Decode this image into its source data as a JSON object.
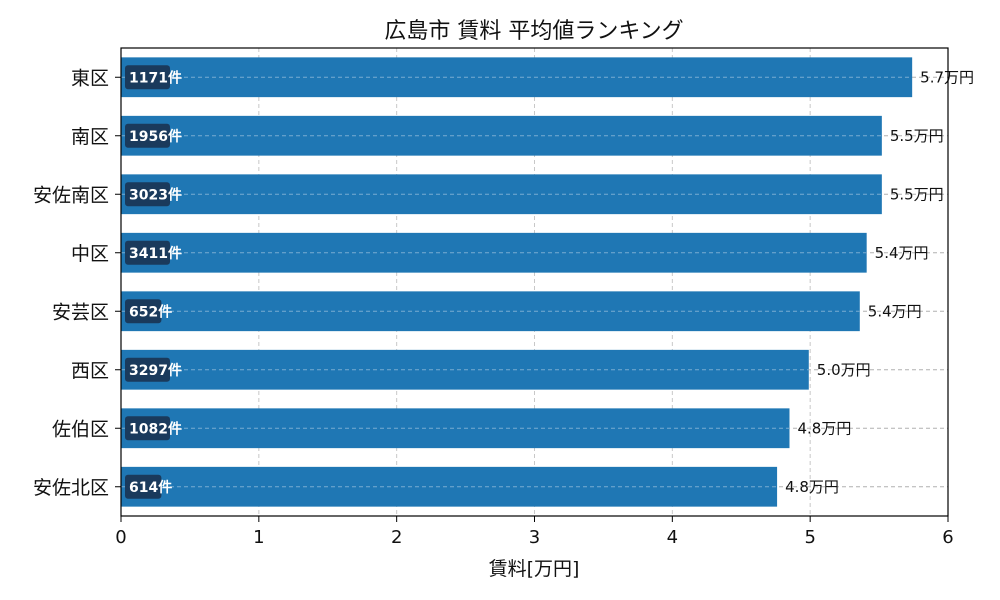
{
  "chart_data": {
    "type": "bar",
    "orientation": "horizontal",
    "title": "広島市 賃料 平均値ランキング",
    "xlabel": "賃料[万円]",
    "ylabel": "",
    "xlim": [
      0,
      6
    ],
    "xticks": [
      "0",
      "1",
      "2",
      "3",
      "4",
      "5",
      "6"
    ],
    "grid": true,
    "categories": [
      "東区",
      "南区",
      "安佐南区",
      "中区",
      "安芸区",
      "西区",
      "佐伯区",
      "安佐北区"
    ],
    "values": [
      5.74,
      5.52,
      5.52,
      5.41,
      5.36,
      4.99,
      4.85,
      4.76
    ],
    "value_labels": [
      "5.7万円",
      "5.5万円",
      "5.5万円",
      "5.4万円",
      "5.4万円",
      "5.0万円",
      "4.8万円",
      "4.8万円"
    ],
    "count_labels": [
      "1171件",
      "1956件",
      "3023件",
      "3411件",
      "652件",
      "3297件",
      "1082件",
      "614件"
    ],
    "bar_color": "#1f77b4",
    "count_badge_color": "#1a3a5c"
  }
}
